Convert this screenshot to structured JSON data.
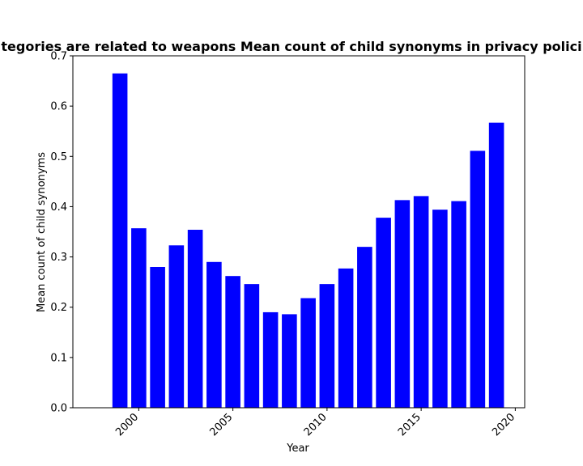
{
  "chart_data": {
    "type": "bar",
    "title": "tegories are related to weapons Mean count of child synonyms in privacy polici",
    "xlabel": "Year",
    "ylabel": "Mean count of child synonyms",
    "x": [
      1999,
      2000,
      2001,
      2002,
      2003,
      2004,
      2005,
      2006,
      2007,
      2008,
      2009,
      2010,
      2011,
      2012,
      2013,
      2014,
      2015,
      2016,
      2017,
      2018,
      2019
    ],
    "values": [
      0.665,
      0.357,
      0.28,
      0.323,
      0.354,
      0.29,
      0.262,
      0.246,
      0.19,
      0.186,
      0.218,
      0.246,
      0.277,
      0.32,
      0.378,
      0.413,
      0.421,
      0.394,
      0.411,
      0.511,
      0.567
    ],
    "xlim": [
      1996.5,
      2020.5
    ],
    "ylim": [
      0,
      0.7
    ],
    "xticks": [
      2000,
      2005,
      2010,
      2015,
      2020
    ],
    "xtick_labels": [
      "2000",
      "2005",
      "2010",
      "2015",
      "2020"
    ],
    "yticks": [
      0.0,
      0.1,
      0.2,
      0.3,
      0.4,
      0.5,
      0.6,
      0.7
    ],
    "ytick_labels": [
      "0.0",
      "0.1",
      "0.2",
      "0.3",
      "0.4",
      "0.5",
      "0.6",
      "0.7"
    ],
    "bar_color": "#0000ff",
    "grid": false,
    "legend": "none"
  }
}
